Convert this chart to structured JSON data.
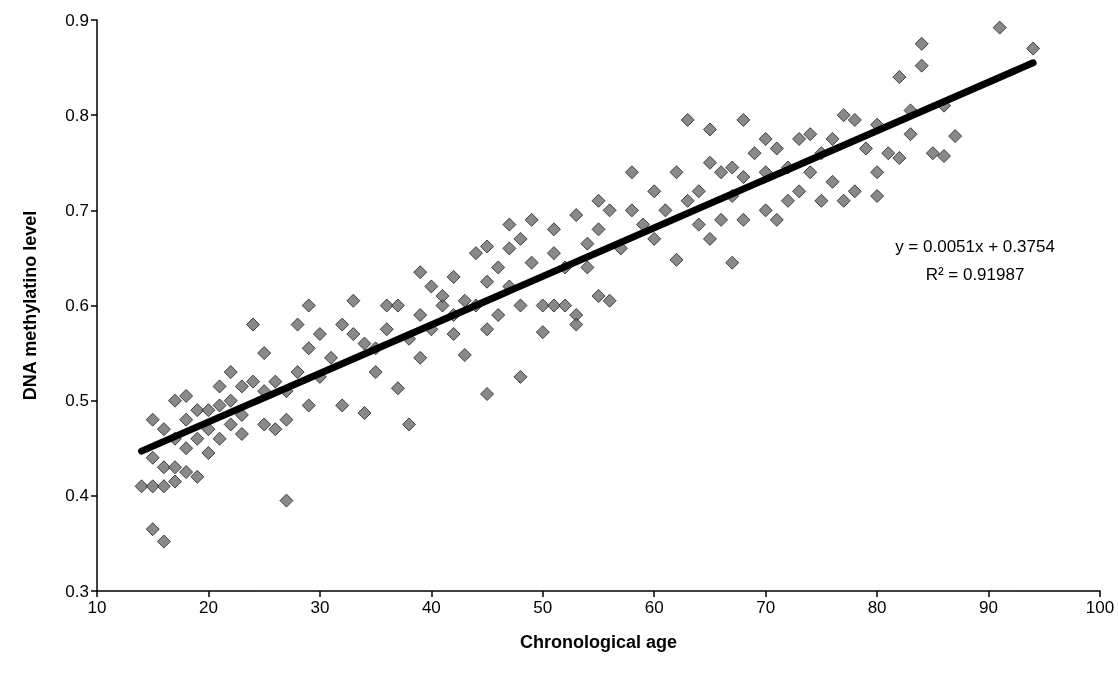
{
  "chart_data": {
    "type": "scatter",
    "xlabel": "Chronological age",
    "ylabel": "DNA methylatino level",
    "xlim": [
      10,
      100
    ],
    "xticks": [
      10,
      20,
      30,
      40,
      50,
      60,
      70,
      80,
      90,
      100
    ],
    "ylim": [
      0.3,
      0.9
    ],
    "yticks": [
      0.3,
      0.4,
      0.5,
      0.6,
      0.7,
      0.8,
      0.9
    ],
    "grid": false,
    "marker": "diamond",
    "annotations": [
      "y = 0.0051x + 0.3754",
      "R² = 0.91987"
    ],
    "series": [
      {
        "color": "#6b6b6b",
        "x": [
          14,
          15,
          16,
          15,
          15,
          15,
          16,
          16,
          16,
          17,
          17,
          17,
          17,
          18,
          18,
          18,
          18,
          19,
          19,
          19,
          20,
          20,
          20,
          21,
          21,
          21,
          22,
          22,
          22,
          23,
          23,
          23,
          24,
          24,
          25,
          25,
          25,
          26,
          26,
          27,
          27,
          27,
          28,
          28,
          29,
          29,
          29,
          30,
          30,
          31,
          32,
          32,
          33,
          33,
          34,
          34,
          35,
          35,
          36,
          36,
          37,
          37,
          38,
          38,
          39,
          39,
          39,
          40,
          40,
          41,
          41,
          42,
          42,
          42,
          43,
          43,
          44,
          44,
          45,
          45,
          45,
          45,
          46,
          46,
          47,
          47,
          47,
          48,
          48,
          48,
          49,
          49,
          50,
          50,
          51,
          51,
          51,
          52,
          52,
          53,
          53,
          53,
          54,
          54,
          55,
          55,
          55,
          56,
          56,
          57,
          58,
          58,
          59,
          60,
          60,
          61,
          62,
          62,
          63,
          63,
          64,
          64,
          65,
          65,
          65,
          66,
          66,
          67,
          67,
          67,
          68,
          68,
          68,
          69,
          70,
          70,
          70,
          71,
          71,
          72,
          72,
          73,
          73,
          74,
          74,
          75,
          75,
          76,
          76,
          77,
          77,
          78,
          78,
          79,
          80,
          80,
          80,
          81,
          82,
          82,
          83,
          83,
          84,
          84,
          85,
          86,
          86,
          87,
          91,
          94
        ],
        "values": [
          0.41,
          0.365,
          0.352,
          0.48,
          0.44,
          0.41,
          0.47,
          0.43,
          0.41,
          0.5,
          0.46,
          0.43,
          0.415,
          0.505,
          0.48,
          0.45,
          0.425,
          0.49,
          0.46,
          0.42,
          0.49,
          0.47,
          0.445,
          0.515,
          0.495,
          0.46,
          0.53,
          0.5,
          0.475,
          0.515,
          0.485,
          0.465,
          0.58,
          0.52,
          0.55,
          0.51,
          0.475,
          0.52,
          0.47,
          0.395,
          0.51,
          0.48,
          0.58,
          0.53,
          0.6,
          0.555,
          0.495,
          0.57,
          0.525,
          0.545,
          0.58,
          0.495,
          0.605,
          0.57,
          0.56,
          0.487,
          0.53,
          0.555,
          0.6,
          0.575,
          0.6,
          0.513,
          0.475,
          0.565,
          0.635,
          0.59,
          0.545,
          0.62,
          0.575,
          0.6,
          0.61,
          0.63,
          0.59,
          0.57,
          0.605,
          0.548,
          0.655,
          0.6,
          0.662,
          0.625,
          0.575,
          0.507,
          0.64,
          0.59,
          0.685,
          0.66,
          0.62,
          0.67,
          0.6,
          0.525,
          0.69,
          0.645,
          0.6,
          0.572,
          0.68,
          0.655,
          0.6,
          0.64,
          0.6,
          0.695,
          0.59,
          0.58,
          0.665,
          0.64,
          0.71,
          0.68,
          0.61,
          0.7,
          0.605,
          0.66,
          0.74,
          0.7,
          0.685,
          0.72,
          0.67,
          0.7,
          0.74,
          0.648,
          0.795,
          0.71,
          0.72,
          0.685,
          0.785,
          0.75,
          0.67,
          0.74,
          0.69,
          0.745,
          0.715,
          0.645,
          0.795,
          0.735,
          0.69,
          0.76,
          0.775,
          0.74,
          0.7,
          0.765,
          0.69,
          0.745,
          0.71,
          0.775,
          0.72,
          0.78,
          0.74,
          0.76,
          0.71,
          0.775,
          0.73,
          0.8,
          0.71,
          0.795,
          0.72,
          0.765,
          0.79,
          0.74,
          0.715,
          0.76,
          0.84,
          0.755,
          0.805,
          0.78,
          0.875,
          0.852,
          0.76,
          0.81,
          0.757,
          0.778,
          0.892,
          0.87
        ]
      },
      {
        "type": "line",
        "color": "#000000",
        "marker": "none",
        "line_style": "solid",
        "x": [
          14,
          94
        ],
        "values": [
          0.447,
          0.855
        ]
      }
    ]
  }
}
